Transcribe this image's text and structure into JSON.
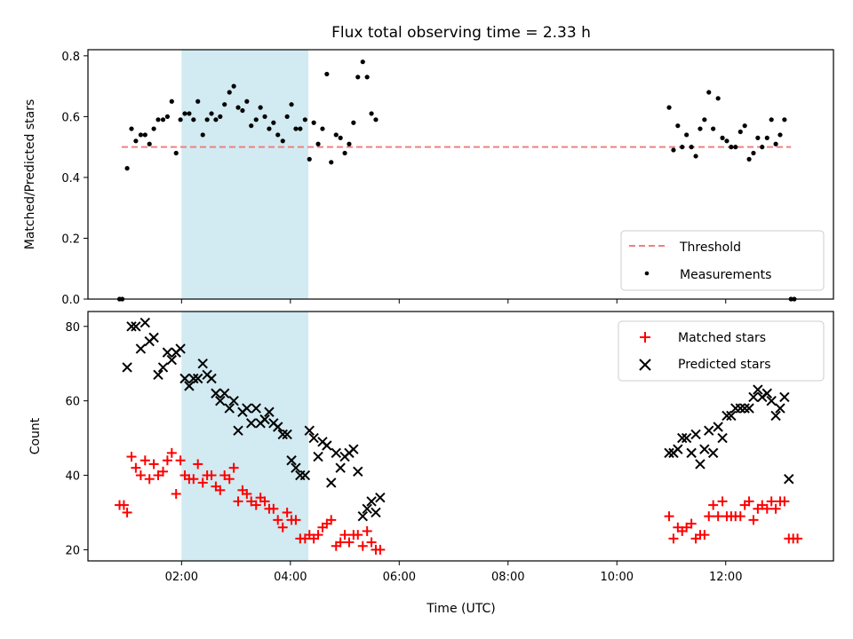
{
  "chart_data": {
    "title": "Flux total observing time = 2.33 h",
    "xlabel": "Time (UTC)",
    "x_ticks": [
      "02:00",
      "04:00",
      "06:00",
      "08:00",
      "10:00",
      "12:00"
    ],
    "x_tick_hours": [
      2,
      4,
      6,
      8,
      10,
      12
    ],
    "xlim": [
      0.28,
      13.98
    ],
    "highlight_span": [
      2.0,
      4.33
    ],
    "colors": {
      "highlight": "#add8e6",
      "threshold": "#f08080",
      "matched": "#ff0000",
      "predicted": "#000000",
      "measurements": "#000000"
    },
    "top": {
      "type": "scatter",
      "ylabel": "Matched/Predicted stars",
      "ylim": [
        0.0,
        0.82
      ],
      "y_ticks": [
        "0.0",
        "0.2",
        "0.4",
        "0.6",
        "0.8"
      ],
      "y_tick_values": [
        0.0,
        0.2,
        0.4,
        0.6,
        0.8
      ],
      "threshold": {
        "name": "Threshold",
        "value": 0.5,
        "x_range": [
          0.9,
          13.2
        ]
      },
      "legend": [
        "Threshold",
        "Measurements"
      ],
      "series": [
        {
          "name": "Measurements",
          "points": [
            [
              0.86,
              0.0
            ],
            [
              0.91,
              0.0
            ],
            [
              1.0,
              0.43
            ],
            [
              1.08,
              0.56
            ],
            [
              1.16,
              0.52
            ],
            [
              1.25,
              0.54
            ],
            [
              1.33,
              0.54
            ],
            [
              1.41,
              0.51
            ],
            [
              1.49,
              0.56
            ],
            [
              1.57,
              0.59
            ],
            [
              1.66,
              0.59
            ],
            [
              1.74,
              0.6
            ],
            [
              1.82,
              0.65
            ],
            [
              1.9,
              0.48
            ],
            [
              1.98,
              0.59
            ],
            [
              2.06,
              0.61
            ],
            [
              2.14,
              0.61
            ],
            [
              2.22,
              0.59
            ],
            [
              2.3,
              0.65
            ],
            [
              2.39,
              0.54
            ],
            [
              2.47,
              0.59
            ],
            [
              2.55,
              0.61
            ],
            [
              2.63,
              0.59
            ],
            [
              2.71,
              0.6
            ],
            [
              2.79,
              0.64
            ],
            [
              2.88,
              0.68
            ],
            [
              2.96,
              0.7
            ],
            [
              3.04,
              0.63
            ],
            [
              3.12,
              0.62
            ],
            [
              3.2,
              0.65
            ],
            [
              3.28,
              0.57
            ],
            [
              3.37,
              0.59
            ],
            [
              3.45,
              0.63
            ],
            [
              3.53,
              0.6
            ],
            [
              3.61,
              0.56
            ],
            [
              3.69,
              0.58
            ],
            [
              3.77,
              0.54
            ],
            [
              3.86,
              0.52
            ],
            [
              3.94,
              0.6
            ],
            [
              4.02,
              0.64
            ],
            [
              4.1,
              0.56
            ],
            [
              4.18,
              0.56
            ],
            [
              4.27,
              0.59
            ],
            [
              4.35,
              0.46
            ],
            [
              4.43,
              0.58
            ],
            [
              4.51,
              0.51
            ],
            [
              4.59,
              0.56
            ],
            [
              4.67,
              0.74
            ],
            [
              4.75,
              0.45
            ],
            [
              4.84,
              0.54
            ],
            [
              4.92,
              0.53
            ],
            [
              5.0,
              0.48
            ],
            [
              5.08,
              0.51
            ],
            [
              5.16,
              0.58
            ],
            [
              5.24,
              0.73
            ],
            [
              5.33,
              0.78
            ],
            [
              5.41,
              0.73
            ],
            [
              5.49,
              0.61
            ],
            [
              5.57,
              0.59
            ],
            [
              10.96,
              0.63
            ],
            [
              11.04,
              0.49
            ],
            [
              11.12,
              0.57
            ],
            [
              11.2,
              0.5
            ],
            [
              11.28,
              0.54
            ],
            [
              11.37,
              0.5
            ],
            [
              11.45,
              0.47
            ],
            [
              11.53,
              0.56
            ],
            [
              11.61,
              0.59
            ],
            [
              11.69,
              0.68
            ],
            [
              11.77,
              0.56
            ],
            [
              11.86,
              0.66
            ],
            [
              11.94,
              0.53
            ],
            [
              12.02,
              0.52
            ],
            [
              12.1,
              0.5
            ],
            [
              12.18,
              0.5
            ],
            [
              12.27,
              0.55
            ],
            [
              12.35,
              0.57
            ],
            [
              12.43,
              0.46
            ],
            [
              12.51,
              0.48
            ],
            [
              12.59,
              0.53
            ],
            [
              12.67,
              0.5
            ],
            [
              12.76,
              0.53
            ],
            [
              12.84,
              0.59
            ],
            [
              12.92,
              0.51
            ],
            [
              13.0,
              0.54
            ],
            [
              13.08,
              0.59
            ],
            [
              13.2,
              0.0
            ],
            [
              13.26,
              0.0
            ]
          ]
        }
      ]
    },
    "bottom": {
      "type": "scatter",
      "ylabel": "Count",
      "ylim": [
        17,
        84
      ],
      "y_ticks": [
        "20",
        "40",
        "60",
        "80"
      ],
      "y_tick_values": [
        20,
        40,
        60,
        80
      ],
      "legend": [
        "Matched stars",
        "Predicted stars"
      ],
      "series": [
        {
          "name": "Matched stars",
          "marker": "+",
          "points": [
            [
              0.86,
              32
            ],
            [
              0.94,
              32
            ],
            [
              1.0,
              30
            ],
            [
              1.08,
              45
            ],
            [
              1.16,
              42
            ],
            [
              1.25,
              40
            ],
            [
              1.33,
              44
            ],
            [
              1.41,
              39
            ],
            [
              1.49,
              43
            ],
            [
              1.57,
              40
            ],
            [
              1.66,
              41
            ],
            [
              1.74,
              44
            ],
            [
              1.82,
              46
            ],
            [
              1.9,
              35
            ],
            [
              1.98,
              44
            ],
            [
              2.06,
              40
            ],
            [
              2.14,
              39
            ],
            [
              2.22,
              39
            ],
            [
              2.3,
              43
            ],
            [
              2.39,
              38
            ],
            [
              2.47,
              40
            ],
            [
              2.55,
              40
            ],
            [
              2.63,
              37
            ],
            [
              2.71,
              36
            ],
            [
              2.79,
              40
            ],
            [
              2.88,
              39
            ],
            [
              2.96,
              42
            ],
            [
              3.04,
              33
            ],
            [
              3.12,
              36
            ],
            [
              3.2,
              35
            ],
            [
              3.28,
              33
            ],
            [
              3.37,
              32
            ],
            [
              3.45,
              34
            ],
            [
              3.53,
              33
            ],
            [
              3.61,
              31
            ],
            [
              3.69,
              31
            ],
            [
              3.77,
              28
            ],
            [
              3.86,
              26
            ],
            [
              3.94,
              30
            ],
            [
              4.02,
              28
            ],
            [
              4.1,
              28
            ],
            [
              4.18,
              23
            ],
            [
              4.27,
              23
            ],
            [
              4.35,
              24
            ],
            [
              4.43,
              23
            ],
            [
              4.51,
              24
            ],
            [
              4.59,
              26
            ],
            [
              4.67,
              27
            ],
            [
              4.75,
              28
            ],
            [
              4.84,
              21
            ],
            [
              4.92,
              22
            ],
            [
              5.0,
              24
            ],
            [
              5.08,
              22
            ],
            [
              5.16,
              24
            ],
            [
              5.24,
              24
            ],
            [
              5.33,
              21
            ],
            [
              5.41,
              25
            ],
            [
              5.49,
              22
            ],
            [
              5.57,
              20
            ],
            [
              5.65,
              20
            ],
            [
              10.96,
              29
            ],
            [
              11.04,
              23
            ],
            [
              11.12,
              26
            ],
            [
              11.2,
              25
            ],
            [
              11.28,
              26
            ],
            [
              11.37,
              27
            ],
            [
              11.45,
              23
            ],
            [
              11.53,
              24
            ],
            [
              11.61,
              24
            ],
            [
              11.69,
              29
            ],
            [
              11.77,
              32
            ],
            [
              11.86,
              29
            ],
            [
              11.94,
              33
            ],
            [
              12.02,
              29
            ],
            [
              12.1,
              29
            ],
            [
              12.18,
              29
            ],
            [
              12.27,
              29
            ],
            [
              12.35,
              32
            ],
            [
              12.43,
              33
            ],
            [
              12.51,
              28
            ],
            [
              12.59,
              31
            ],
            [
              12.67,
              32
            ],
            [
              12.76,
              31
            ],
            [
              12.84,
              33
            ],
            [
              12.92,
              31
            ],
            [
              13.0,
              33
            ],
            [
              13.08,
              33
            ],
            [
              13.16,
              23
            ],
            [
              13.24,
              23
            ],
            [
              13.32,
              23
            ]
          ]
        },
        {
          "name": "Predicted stars",
          "marker": "x",
          "points": [
            [
              1.0,
              69
            ],
            [
              1.08,
              80
            ],
            [
              1.16,
              80
            ],
            [
              1.25,
              74
            ],
            [
              1.33,
              81
            ],
            [
              1.41,
              76
            ],
            [
              1.49,
              77
            ],
            [
              1.57,
              67
            ],
            [
              1.66,
              69
            ],
            [
              1.74,
              73
            ],
            [
              1.82,
              71
            ],
            [
              1.9,
              73
            ],
            [
              1.98,
              74
            ],
            [
              2.06,
              66
            ],
            [
              2.14,
              64
            ],
            [
              2.22,
              66
            ],
            [
              2.3,
              66
            ],
            [
              2.39,
              70
            ],
            [
              2.47,
              67
            ],
            [
              2.55,
              66
            ],
            [
              2.63,
              62
            ],
            [
              2.71,
              60
            ],
            [
              2.79,
              62
            ],
            [
              2.88,
              58
            ],
            [
              2.96,
              60
            ],
            [
              3.04,
              52
            ],
            [
              3.12,
              57
            ],
            [
              3.2,
              58
            ],
            [
              3.28,
              54
            ],
            [
              3.37,
              58
            ],
            [
              3.45,
              54
            ],
            [
              3.53,
              55
            ],
            [
              3.61,
              57
            ],
            [
              3.69,
              54
            ],
            [
              3.77,
              53
            ],
            [
              3.86,
              51
            ],
            [
              3.94,
              51
            ],
            [
              4.02,
              44
            ],
            [
              4.1,
              42
            ],
            [
              4.18,
              40
            ],
            [
              4.27,
              40
            ],
            [
              4.35,
              52
            ],
            [
              4.43,
              50
            ],
            [
              4.51,
              45
            ],
            [
              4.59,
              49
            ],
            [
              4.67,
              48
            ],
            [
              4.75,
              38
            ],
            [
              4.84,
              46
            ],
            [
              4.92,
              42
            ],
            [
              5.0,
              45
            ],
            [
              5.08,
              46
            ],
            [
              5.16,
              47
            ],
            [
              5.24,
              41
            ],
            [
              5.33,
              29
            ],
            [
              5.41,
              31
            ],
            [
              5.49,
              33
            ],
            [
              5.57,
              30
            ],
            [
              5.65,
              34
            ],
            [
              10.96,
              46
            ],
            [
              11.04,
              46
            ],
            [
              11.12,
              47
            ],
            [
              11.2,
              50
            ],
            [
              11.28,
              50
            ],
            [
              11.37,
              46
            ],
            [
              11.45,
              51
            ],
            [
              11.53,
              43
            ],
            [
              11.61,
              47
            ],
            [
              11.69,
              52
            ],
            [
              11.77,
              46
            ],
            [
              11.86,
              53
            ],
            [
              11.94,
              50
            ],
            [
              12.02,
              56
            ],
            [
              12.1,
              56
            ],
            [
              12.18,
              58
            ],
            [
              12.27,
              58
            ],
            [
              12.35,
              58
            ],
            [
              12.43,
              58
            ],
            [
              12.51,
              61
            ],
            [
              12.59,
              63
            ],
            [
              12.67,
              61
            ],
            [
              12.76,
              62
            ],
            [
              12.84,
              60
            ],
            [
              12.92,
              56
            ],
            [
              13.0,
              58
            ],
            [
              13.08,
              61
            ],
            [
              13.16,
              39
            ]
          ]
        }
      ]
    }
  }
}
